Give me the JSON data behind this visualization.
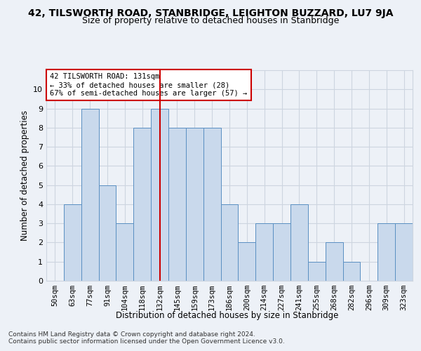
{
  "title": "42, TILSWORTH ROAD, STANBRIDGE, LEIGHTON BUZZARD, LU7 9JA",
  "subtitle": "Size of property relative to detached houses in Stanbridge",
  "xlabel": "Distribution of detached houses by size in Stanbridge",
  "ylabel": "Number of detached properties",
  "footer_line1": "Contains HM Land Registry data © Crown copyright and database right 2024.",
  "footer_line2": "Contains public sector information licensed under the Open Government Licence v3.0.",
  "categories": [
    "50sqm",
    "63sqm",
    "77sqm",
    "91sqm",
    "104sqm",
    "118sqm",
    "132sqm",
    "145sqm",
    "159sqm",
    "173sqm",
    "186sqm",
    "200sqm",
    "214sqm",
    "227sqm",
    "241sqm",
    "255sqm",
    "268sqm",
    "282sqm",
    "296sqm",
    "309sqm",
    "323sqm"
  ],
  "values": [
    0,
    4,
    9,
    5,
    3,
    8,
    9,
    8,
    8,
    8,
    4,
    2,
    3,
    3,
    4,
    1,
    2,
    1,
    0,
    3,
    3
  ],
  "bar_color": "#c9d9ec",
  "bar_edge_color": "#5a8fc2",
  "vline_color": "#cc0000",
  "vline_x": 6,
  "annotation_text": "42 TILSWORTH ROAD: 131sqm\n← 33% of detached houses are smaller (28)\n67% of semi-detached houses are larger (57) →",
  "annotation_box_color": "#ffffff",
  "annotation_box_edge_color": "#cc0000",
  "ylim": [
    0,
    11
  ],
  "yticks": [
    0,
    1,
    2,
    3,
    4,
    5,
    6,
    7,
    8,
    9,
    10
  ],
  "grid_color": "#cdd5e0",
  "background_color": "#edf1f7",
  "title_fontsize": 10,
  "subtitle_fontsize": 9,
  "tick_fontsize": 7.5,
  "footer_fontsize": 6.5
}
